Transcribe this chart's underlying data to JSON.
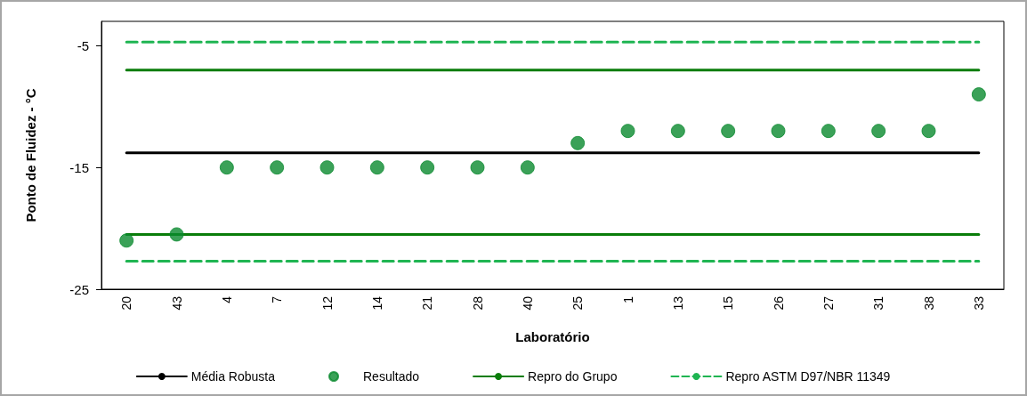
{
  "chart_data": {
    "type": "scatter",
    "xlabel": "Laboratório",
    "ylabel": "Ponto de Fluidez - °C",
    "categories": [
      "20",
      "43",
      "4",
      "7",
      "12",
      "14",
      "21",
      "28",
      "40",
      "25",
      "1",
      "13",
      "15",
      "26",
      "27",
      "31",
      "38",
      "33"
    ],
    "series": [
      {
        "name": "Média Robusta",
        "type": "line",
        "color": "#000000",
        "line_style": "solid",
        "marker": "none",
        "values": [
          -13.8,
          -13.8,
          -13.8,
          -13.8,
          -13.8,
          -13.8,
          -13.8,
          -13.8,
          -13.8,
          -13.8,
          -13.8,
          -13.8,
          -13.8,
          -13.8,
          -13.8,
          -13.8,
          -13.8,
          -13.8
        ]
      },
      {
        "name": "Resultado",
        "color": "#0a8a2e",
        "marker": "circle",
        "values": [
          -21,
          -20.5,
          -15,
          -15,
          -15,
          -15,
          -15,
          -15,
          -15,
          -13,
          -12,
          -12,
          -12,
          -12,
          -12,
          -12,
          -12,
          -9
        ]
      },
      {
        "name": "Repro do Grupo",
        "type": "line",
        "color": "#0a7d0a",
        "line_style": "solid",
        "marker": "none",
        "values": [
          -7,
          -7,
          -7,
          -7,
          -7,
          -7,
          -7,
          -7,
          -7,
          -7,
          -7,
          -7,
          -7,
          -7,
          -7,
          -7,
          -7,
          -7
        ]
      },
      {
        "type": "line",
        "color": "#0a7d0a",
        "line_style": "solid",
        "marker": "none",
        "values": [
          -20.5,
          -20.5,
          -20.5,
          -20.5,
          -20.5,
          -20.5,
          -20.5,
          -20.5,
          -20.5,
          -20.5,
          -20.5,
          -20.5,
          -20.5,
          -20.5,
          -20.5,
          -20.5,
          -20.5,
          -20.5
        ]
      },
      {
        "name": "Repro ASTM D97/NBR 11349",
        "type": "line",
        "color": "#1fb552",
        "line_style": "dashed",
        "marker": "none",
        "values": [
          -4.7,
          -4.7,
          -4.7,
          -4.7,
          -4.7,
          -4.7,
          -4.7,
          -4.7,
          -4.7,
          -4.7,
          -4.7,
          -4.7,
          -4.7,
          -4.7,
          -4.7,
          -4.7,
          -4.7,
          -4.7
        ]
      },
      {
        "type": "line",
        "color": "#1fb552",
        "line_style": "dashed",
        "marker": "none",
        "values": [
          -22.7,
          -22.7,
          -22.7,
          -22.7,
          -22.7,
          -22.7,
          -22.7,
          -22.7,
          -22.7,
          -22.7,
          -22.7,
          -22.7,
          -22.7,
          -22.7,
          -22.7,
          -22.7,
          -22.7,
          -22.7
        ]
      }
    ],
    "ylim": [
      -25,
      -3
    ],
    "yticks": [
      -25,
      -15,
      -5
    ],
    "grid": false,
    "legend": "bottom"
  }
}
